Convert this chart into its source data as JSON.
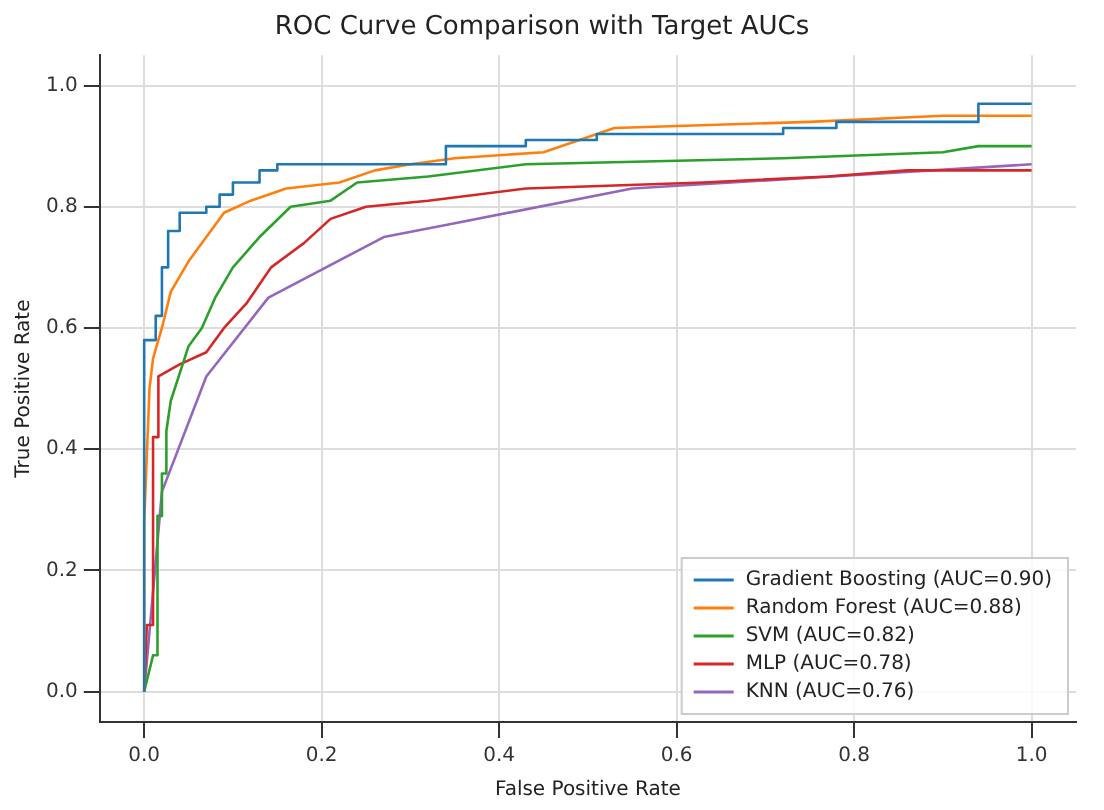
{
  "chart_data": {
    "type": "line",
    "title": "ROC Curve Comparison with Target AUCs",
    "xlabel": "False Positive Rate",
    "ylabel": "True Positive Rate",
    "xlim": [
      -0.05,
      1.05
    ],
    "ylim": [
      -0.05,
      1.05
    ],
    "xticks": [
      {
        "value": 0,
        "label": "0.0"
      },
      {
        "value": 0.2,
        "label": "0.2"
      },
      {
        "value": 0.4,
        "label": "0.4"
      },
      {
        "value": 0.6,
        "label": "0.6"
      },
      {
        "value": 0.8,
        "label": "0.8"
      },
      {
        "value": 1,
        "label": "1.0"
      }
    ],
    "yticks": [
      {
        "value": 0,
        "label": "0.0"
      },
      {
        "value": 0.2,
        "label": "0.2"
      },
      {
        "value": 0.4,
        "label": "0.4"
      },
      {
        "value": 0.6,
        "label": "0.6"
      },
      {
        "value": 0.8,
        "label": "0.8"
      },
      {
        "value": 1,
        "label": "1.0"
      }
    ],
    "grid": true,
    "legend": "bottom right",
    "marker": "none",
    "line_style": "solid",
    "series": [
      {
        "name": "Gradient Boosting (AUC=0.90)",
        "color": "#1f77b4",
        "x": [
          0,
          0,
          0.013,
          0.013,
          0.02,
          0.02,
          0.027,
          0.027,
          0.04,
          0.04,
          0.07,
          0.07,
          0.085,
          0.085,
          0.1,
          0.1,
          0.13,
          0.13,
          0.15,
          0.15,
          0.28,
          0.34,
          0.34,
          0.43,
          0.43,
          0.51,
          0.51,
          0.72,
          0.72,
          0.78,
          0.78,
          0.94,
          0.94,
          1.0
        ],
        "values": [
          0,
          0.58,
          0.58,
          0.62,
          0.62,
          0.7,
          0.7,
          0.76,
          0.76,
          0.79,
          0.79,
          0.8,
          0.8,
          0.82,
          0.82,
          0.84,
          0.84,
          0.86,
          0.86,
          0.87,
          0.87,
          0.87,
          0.9,
          0.9,
          0.91,
          0.91,
          0.92,
          0.92,
          0.93,
          0.93,
          0.94,
          0.94,
          0.97,
          0.97
        ]
      },
      {
        "name": "Random Forest (AUC=0.88)",
        "color": "#ff7f0e",
        "x": [
          0,
          0,
          0.006,
          0.01,
          0.02,
          0.03,
          0.05,
          0.07,
          0.09,
          0.12,
          0.16,
          0.22,
          0.26,
          0.3,
          0.35,
          0.45,
          0.53,
          0.75,
          0.9,
          1.0
        ],
        "values": [
          0,
          0.28,
          0.5,
          0.55,
          0.6,
          0.66,
          0.71,
          0.75,
          0.79,
          0.81,
          0.83,
          0.84,
          0.86,
          0.87,
          0.88,
          0.89,
          0.93,
          0.94,
          0.95,
          0.95
        ]
      },
      {
        "name": "SVM (AUC=0.82)",
        "color": "#2ca02c",
        "x": [
          0,
          0.01,
          0.01,
          0.015,
          0.015,
          0.02,
          0.02,
          0.025,
          0.025,
          0.03,
          0.05,
          0.065,
          0.08,
          0.1,
          0.13,
          0.165,
          0.21,
          0.24,
          0.32,
          0.43,
          0.72,
          0.9,
          0.94,
          1.0
        ],
        "values": [
          0,
          0.06,
          0.06,
          0.06,
          0.29,
          0.29,
          0.36,
          0.36,
          0.43,
          0.48,
          0.57,
          0.6,
          0.65,
          0.7,
          0.75,
          0.8,
          0.81,
          0.84,
          0.85,
          0.87,
          0.88,
          0.89,
          0.9,
          0.9
        ]
      },
      {
        "name": "MLP (AUC=0.78)",
        "color": "#d62728",
        "x": [
          0,
          0.003,
          0.003,
          0.01,
          0.01,
          0.016,
          0.016,
          0.04,
          0.07,
          0.09,
          0.115,
          0.143,
          0.18,
          0.21,
          0.25,
          0.32,
          0.43,
          0.63,
          0.77,
          0.86,
          1.0
        ],
        "values": [
          0,
          0.11,
          0.11,
          0.11,
          0.42,
          0.42,
          0.52,
          0.54,
          0.56,
          0.6,
          0.64,
          0.7,
          0.74,
          0.78,
          0.8,
          0.81,
          0.83,
          0.84,
          0.85,
          0.86,
          0.86
        ]
      },
      {
        "name": "KNN (AUC=0.76)",
        "color": "#9467bd",
        "x": [
          0,
          0.02,
          0.07,
          0.14,
          0.27,
          0.34,
          0.55,
          1.0
        ],
        "values": [
          0,
          0.33,
          0.52,
          0.65,
          0.75,
          0.77,
          0.83,
          0.87
        ]
      }
    ]
  }
}
